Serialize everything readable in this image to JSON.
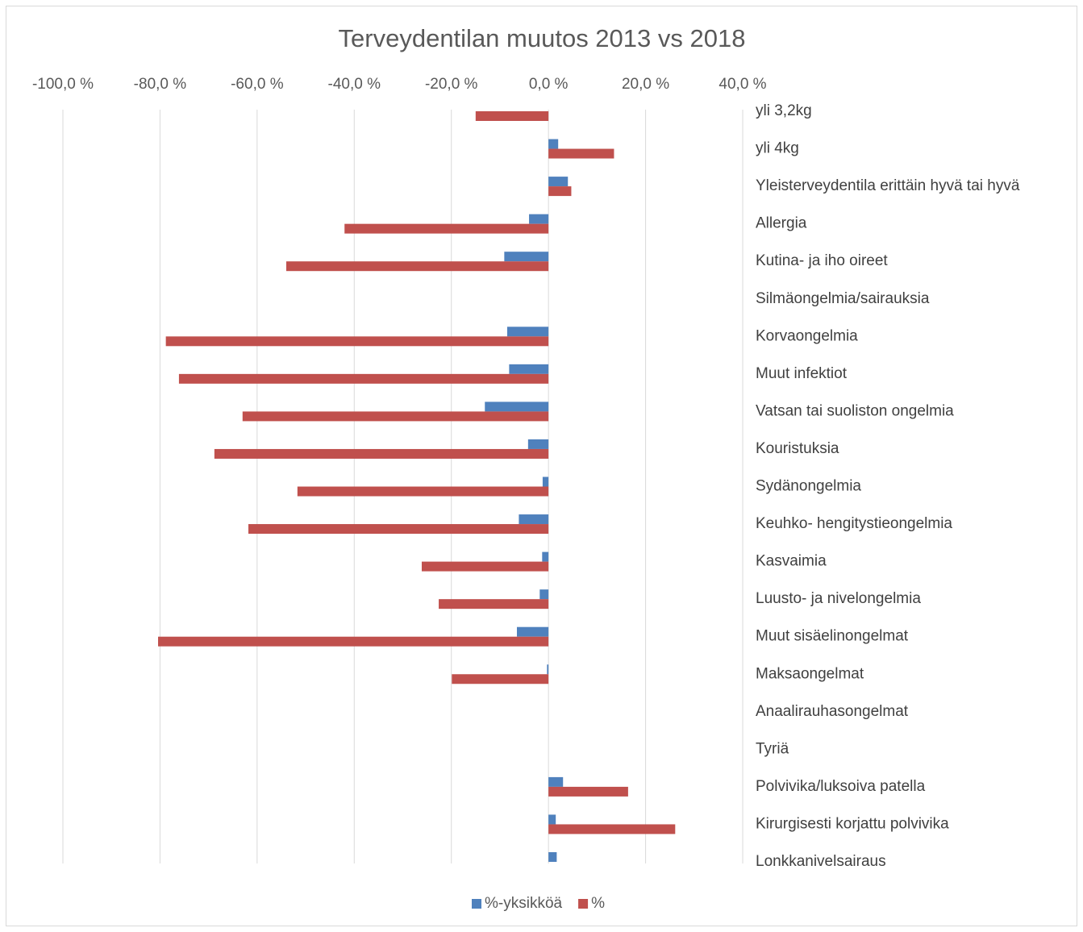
{
  "chart_data": {
    "type": "barh",
    "title": "Terveydentilan muutos 2013 vs 2018",
    "categories": [
      "yli 3,2kg",
      "yli 4kg",
      "Yleisterveydentila erittäin hyvä tai hyvä",
      "Allergia",
      "Kutina- ja iho oireet",
      "Silmäongelmia/sairauksia",
      "Korvaongelmia",
      "Muut infektiot",
      "Vatsan tai suoliston ongelmia",
      "Kouristuksia",
      "Sydänongelmia",
      "Keuhko- hengitystieongelmia",
      "Kasvaimia",
      "Luusto- ja nivelongelmia",
      "Muut sisäelinongelmat",
      "Maksaongelmat",
      "Anaalirauhasongelmat",
      "Tyriä",
      "Polvivika/luksoiva patella",
      "Kirurgisesti korjattu polvivika",
      "Lonkkanivelsairaus"
    ],
    "series": [
      {
        "name": "%-yksikköä",
        "color": "#4f81bd",
        "values": [
          null,
          2.0,
          4.0,
          -4.0,
          -9.1,
          null,
          -8.5,
          -8.1,
          -13.1,
          -4.2,
          -1.2,
          -6.1,
          -1.3,
          -1.8,
          -6.5,
          -0.3,
          null,
          null,
          3.0,
          1.5,
          1.7
        ]
      },
      {
        "name": "%",
        "color": "#c0504d",
        "values": [
          -15.0,
          13.5,
          4.7,
          -42.0,
          -54.0,
          null,
          -78.8,
          -76.1,
          -63.0,
          -68.8,
          -51.7,
          -61.8,
          -26.1,
          -22.6,
          -80.4,
          -19.9,
          null,
          null,
          16.4,
          26.1,
          null
        ]
      }
    ],
    "xlim": [
      -100,
      40
    ],
    "xticks": [
      {
        "value": -100,
        "label": "-100,0 %"
      },
      {
        "value": -80,
        "label": "-80,0 %"
      },
      {
        "value": -60,
        "label": "-60,0 %"
      },
      {
        "value": -40,
        "label": "-40,0 %"
      },
      {
        "value": -20,
        "label": "-20,0 %"
      },
      {
        "value": 0,
        "label": "0,0 %"
      },
      {
        "value": 20,
        "label": "20,0 %"
      },
      {
        "value": 40,
        "label": "40,0 %"
      }
    ],
    "grid": true,
    "legend": "bottom"
  }
}
